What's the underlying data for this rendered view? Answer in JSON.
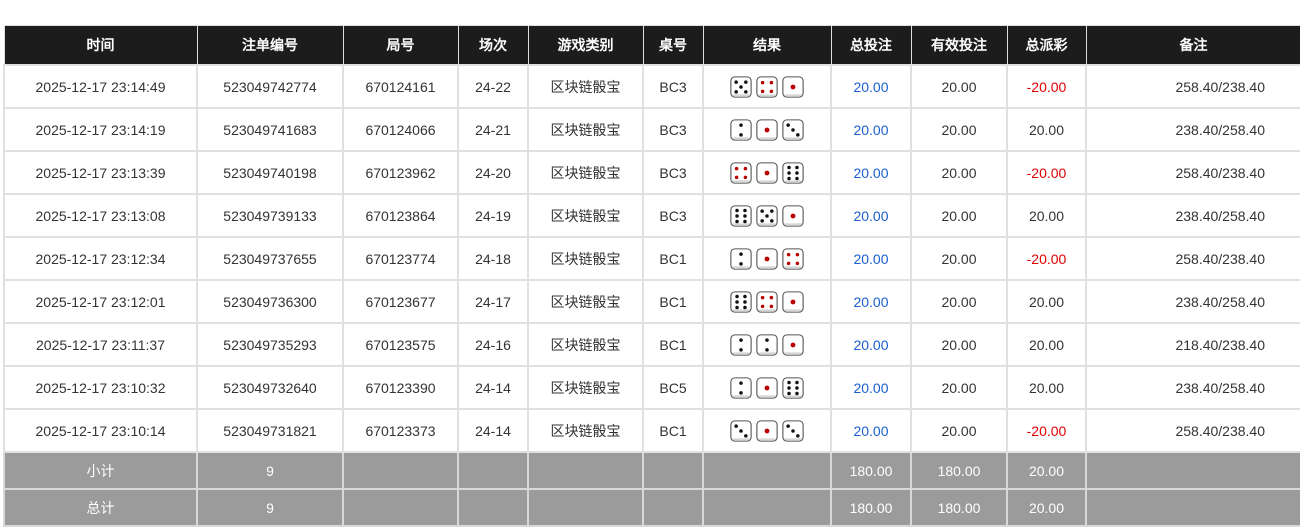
{
  "headers": [
    "时间",
    "注单编号",
    "局号",
    "场次",
    "游戏类别",
    "桌号",
    "结果",
    "总投注",
    "有效投注",
    "总派彩",
    "备注"
  ],
  "rows": [
    {
      "time": "2025-12-17 23:14:49",
      "bet_id": "523049742774",
      "round": "670124161",
      "session": "24-22",
      "game": "区块链骰宝",
      "table": "BC3",
      "dice": [
        5,
        4,
        1
      ],
      "total_bet": "20.00",
      "valid_bet": "20.00",
      "payout": "-20.00",
      "note": "258.40/238.40"
    },
    {
      "time": "2025-12-17 23:14:19",
      "bet_id": "523049741683",
      "round": "670124066",
      "session": "24-21",
      "game": "区块链骰宝",
      "table": "BC3",
      "dice": [
        2,
        1,
        3
      ],
      "total_bet": "20.00",
      "valid_bet": "20.00",
      "payout": "20.00",
      "note": "238.40/258.40"
    },
    {
      "time": "2025-12-17 23:13:39",
      "bet_id": "523049740198",
      "round": "670123962",
      "session": "24-20",
      "game": "区块链骰宝",
      "table": "BC3",
      "dice": [
        4,
        1,
        6
      ],
      "total_bet": "20.00",
      "valid_bet": "20.00",
      "payout": "-20.00",
      "note": "258.40/238.40"
    },
    {
      "time": "2025-12-17 23:13:08",
      "bet_id": "523049739133",
      "round": "670123864",
      "session": "24-19",
      "game": "区块链骰宝",
      "table": "BC3",
      "dice": [
        6,
        5,
        1
      ],
      "total_bet": "20.00",
      "valid_bet": "20.00",
      "payout": "20.00",
      "note": "238.40/258.40"
    },
    {
      "time": "2025-12-17 23:12:34",
      "bet_id": "523049737655",
      "round": "670123774",
      "session": "24-18",
      "game": "区块链骰宝",
      "table": "BC1",
      "dice": [
        2,
        1,
        4
      ],
      "total_bet": "20.00",
      "valid_bet": "20.00",
      "payout": "-20.00",
      "note": "258.40/238.40"
    },
    {
      "time": "2025-12-17 23:12:01",
      "bet_id": "523049736300",
      "round": "670123677",
      "session": "24-17",
      "game": "区块链骰宝",
      "table": "BC1",
      "dice": [
        6,
        4,
        1
      ],
      "total_bet": "20.00",
      "valid_bet": "20.00",
      "payout": "20.00",
      "note": "238.40/258.40"
    },
    {
      "time": "2025-12-17 23:11:37",
      "bet_id": "523049735293",
      "round": "670123575",
      "session": "24-16",
      "game": "区块链骰宝",
      "table": "BC1",
      "dice": [
        2,
        2,
        1
      ],
      "total_bet": "20.00",
      "valid_bet": "20.00",
      "payout": "20.00",
      "note": "218.40/238.40"
    },
    {
      "time": "2025-12-17 23:10:32",
      "bet_id": "523049732640",
      "round": "670123390",
      "session": "24-14",
      "game": "区块链骰宝",
      "table": "BC5",
      "dice": [
        2,
        1,
        6
      ],
      "total_bet": "20.00",
      "valid_bet": "20.00",
      "payout": "20.00",
      "note": "238.40/258.40"
    },
    {
      "time": "2025-12-17 23:10:14",
      "bet_id": "523049731821",
      "round": "670123373",
      "session": "24-14",
      "game": "区块链骰宝",
      "table": "BC1",
      "dice": [
        3,
        1,
        3
      ],
      "total_bet": "20.00",
      "valid_bet": "20.00",
      "payout": "-20.00",
      "note": "258.40/238.40"
    }
  ],
  "summary": [
    {
      "label": "小计",
      "count": "9",
      "total_bet": "180.00",
      "valid_bet": "180.00",
      "payout": "20.00"
    },
    {
      "label": "总计",
      "count": "9",
      "total_bet": "180.00",
      "valid_bet": "180.00",
      "payout": "20.00"
    }
  ],
  "colors": {
    "header_bg": "#1c1c1c",
    "positive": "#1a5fd0",
    "negative": "#e00000",
    "summary_bg": "#9b9b9b"
  }
}
